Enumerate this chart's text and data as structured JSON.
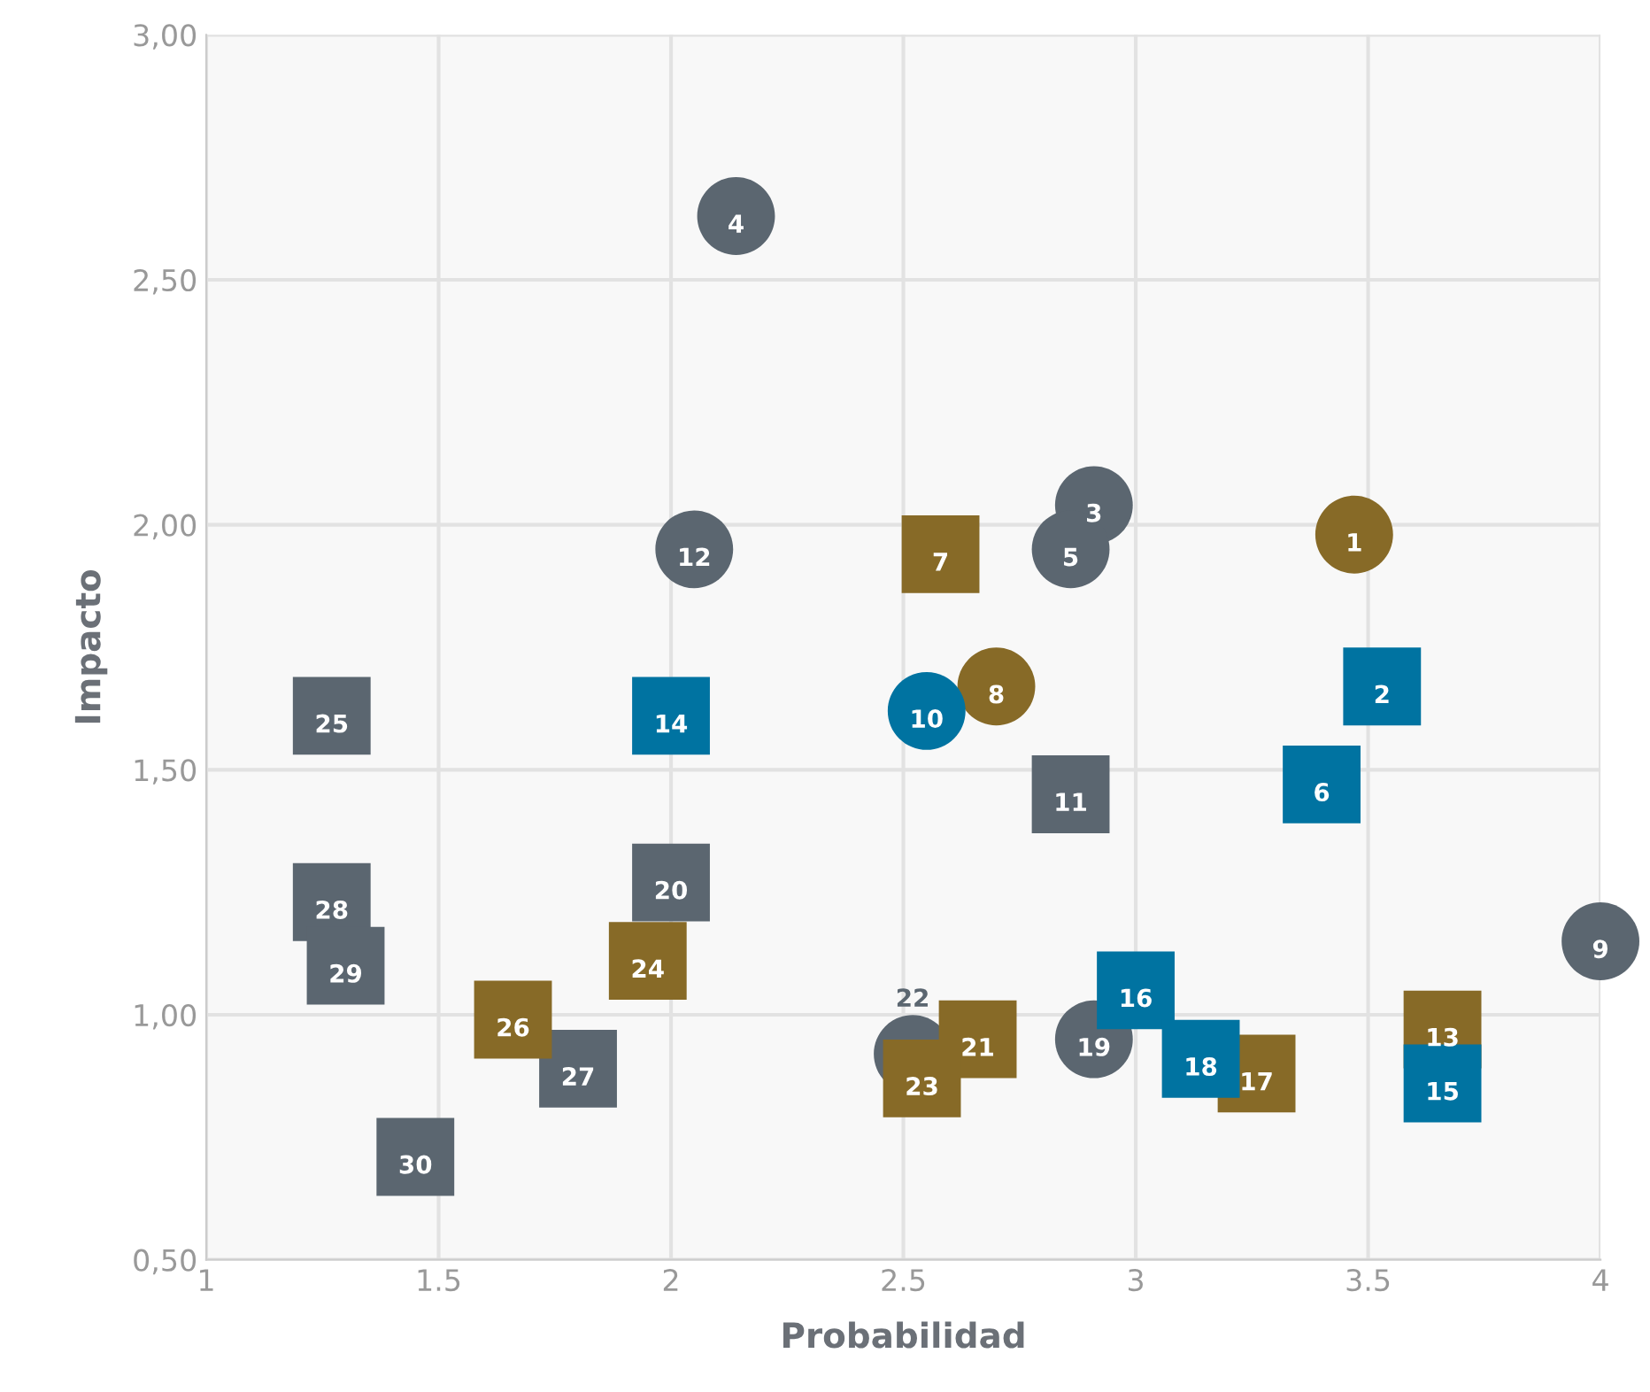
{
  "chart_data": {
    "type": "scatter",
    "xlabel": "Probabilidad",
    "ylabel": "Impacto",
    "xlim": [
      1,
      4
    ],
    "ylim": [
      0.5,
      3.0
    ],
    "xticks": [
      1,
      1.5,
      2,
      2.5,
      3,
      3.5,
      4
    ],
    "yticks": [
      {
        "value": 0.5,
        "label": "0,50"
      },
      {
        "value": 1.0,
        "label": "1,00"
      },
      {
        "value": 1.5,
        "label": "1,50"
      },
      {
        "value": 2.0,
        "label": "2,00"
      },
      {
        "value": 2.5,
        "label": "2,50"
      },
      {
        "value": 3.0,
        "label": "3,00"
      }
    ],
    "grid": true,
    "legend": false,
    "series": [
      {
        "color": "#5b6670",
        "marker": "circle",
        "x": [
          2.91,
          2.14,
          2.86,
          4.0,
          2.05,
          2.91,
          2.52
        ],
        "values": [
          2.04,
          2.63,
          1.95,
          1.15,
          1.95,
          0.95,
          0.92
        ]
      },
      {
        "color": "#5b6670",
        "marker": "square",
        "x": [
          2.86,
          2.0,
          1.27,
          1.8,
          1.27,
          1.3,
          1.45
        ],
        "values": [
          1.45,
          1.27,
          1.61,
          0.89,
          1.23,
          1.1,
          0.71
        ]
      },
      {
        "color": "#876a27",
        "marker": "circle",
        "x": [
          3.47,
          2.7
        ],
        "values": [
          1.98,
          1.67
        ]
      },
      {
        "color": "#876a27",
        "marker": "square",
        "x": [
          2.58,
          3.66,
          3.26,
          2.66,
          2.54,
          1.95,
          1.66
        ],
        "values": [
          1.94,
          0.97,
          0.88,
          0.95,
          0.87,
          1.11,
          0.99
        ]
      },
      {
        "color": "#0073a1",
        "marker": "circle",
        "x": [
          2.55
        ],
        "values": [
          1.62
        ]
      },
      {
        "color": "#0073a1",
        "marker": "square",
        "x": [
          3.53,
          3.4,
          2.0,
          3.66,
          3.0,
          3.14
        ],
        "values": [
          1.67,
          1.47,
          1.61,
          0.86,
          1.05,
          0.91
        ]
      }
    ],
    "annotations": [
      {
        "text": "1",
        "x": 3.47,
        "y": 1.98
      },
      {
        "text": "2",
        "x": 3.53,
        "y": 1.67
      },
      {
        "text": "3",
        "x": 2.91,
        "y": 2.04
      },
      {
        "text": "4",
        "x": 2.14,
        "y": 2.63
      },
      {
        "text": "5",
        "x": 2.86,
        "y": 1.95
      },
      {
        "text": "6",
        "x": 3.4,
        "y": 1.47
      },
      {
        "text": "7",
        "x": 2.58,
        "y": 1.94
      },
      {
        "text": "8",
        "x": 2.7,
        "y": 1.67
      },
      {
        "text": "9",
        "x": 4.0,
        "y": 1.15
      },
      {
        "text": "10",
        "x": 2.55,
        "y": 1.62
      },
      {
        "text": "11",
        "x": 2.86,
        "y": 1.45
      },
      {
        "text": "12",
        "x": 2.05,
        "y": 1.95
      },
      {
        "text": "13",
        "x": 3.66,
        "y": 0.97
      },
      {
        "text": "14",
        "x": 2.0,
        "y": 1.61
      },
      {
        "text": "15",
        "x": 3.66,
        "y": 0.86
      },
      {
        "text": "16",
        "x": 3.0,
        "y": 1.05
      },
      {
        "text": "17",
        "x": 3.26,
        "y": 0.88
      },
      {
        "text": "18",
        "x": 3.14,
        "y": 0.91
      },
      {
        "text": "19",
        "x": 2.91,
        "y": 0.95
      },
      {
        "text": "20",
        "x": 2.0,
        "y": 1.27
      },
      {
        "text": "21",
        "x": 2.66,
        "y": 0.95
      },
      {
        "text": "22",
        "x": 2.52,
        "y": 0.92
      },
      {
        "text": "23",
        "x": 2.54,
        "y": 0.87
      },
      {
        "text": "24",
        "x": 1.95,
        "y": 1.11
      },
      {
        "text": "25",
        "x": 1.27,
        "y": 1.61
      },
      {
        "text": "26",
        "x": 1.66,
        "y": 0.99
      },
      {
        "text": "27",
        "x": 1.8,
        "y": 0.89
      },
      {
        "text": "28",
        "x": 1.27,
        "y": 1.23
      },
      {
        "text": "29",
        "x": 1.3,
        "y": 1.1
      },
      {
        "text": "30",
        "x": 1.45,
        "y": 0.71
      }
    ]
  }
}
